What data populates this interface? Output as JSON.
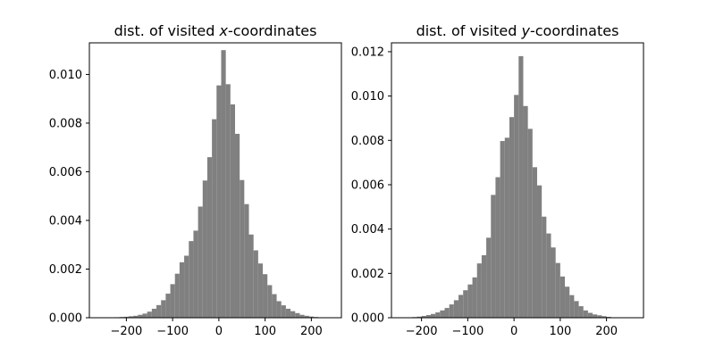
{
  "chart_data": [
    {
      "type": "bar",
      "title_prefix": "dist. of visited ",
      "title_var": "x",
      "title_suffix": "-coordinates",
      "xlim": [
        -280,
        265
      ],
      "ylim": [
        0,
        0.0113
      ],
      "xticks": [
        -200,
        -100,
        0,
        100,
        200
      ],
      "xtick_labels": [
        "−200",
        "−100",
        "0",
        "100",
        "200"
      ],
      "yticks": [
        0,
        0.002,
        0.004,
        0.006,
        0.008,
        0.01
      ],
      "ytick_labels": [
        "0.000",
        "0.002",
        "0.004",
        "0.006",
        "0.008",
        "0.010"
      ],
      "bin_edges": [
        -225,
        -215,
        -205,
        -195,
        -185,
        -175,
        -165,
        -155,
        -145,
        -135,
        -125,
        -115,
        -105,
        -95,
        -85,
        -75,
        -65,
        -55,
        -45,
        -35,
        -25,
        -15,
        -5,
        5,
        15,
        25,
        35,
        45,
        55,
        65,
        75,
        85,
        95,
        105,
        115,
        125,
        135,
        145,
        155,
        165,
        175,
        185,
        195,
        205,
        215
      ],
      "values": [
        2e-05,
        3e-05,
        4e-05,
        6e-05,
        8e-05,
        0.00012,
        0.00017,
        0.00025,
        0.00037,
        0.00052,
        0.00072,
        0.00099,
        0.00138,
        0.00181,
        0.00228,
        0.00255,
        0.00315,
        0.00358,
        0.00457,
        0.00564,
        0.0066,
        0.00816,
        0.00955,
        0.011,
        0.0096,
        0.00877,
        0.00756,
        0.00566,
        0.00467,
        0.00342,
        0.00277,
        0.00223,
        0.00179,
        0.00134,
        0.00097,
        0.00068,
        0.00051,
        0.00037,
        0.00027,
        0.00019,
        0.00012,
        8e-05,
        5e-05,
        3e-05
      ]
    },
    {
      "type": "bar",
      "title_prefix": "dist. of visited ",
      "title_var": "y",
      "title_suffix": "-coordinates",
      "xlim": [
        -265,
        280
      ],
      "ylim": [
        0,
        0.0124
      ],
      "xticks": [
        -200,
        -100,
        0,
        100,
        200
      ],
      "xtick_labels": [
        "−200",
        "−100",
        "0",
        "100",
        "200"
      ],
      "yticks": [
        0,
        0.002,
        0.004,
        0.006,
        0.008,
        0.01,
        0.012
      ],
      "ytick_labels": [
        "0.000",
        "0.002",
        "0.004",
        "0.006",
        "0.008",
        "0.010",
        "0.012"
      ],
      "bin_edges": [
        -230,
        -220,
        -210,
        -200,
        -190,
        -180,
        -170,
        -160,
        -150,
        -140,
        -130,
        -120,
        -110,
        -100,
        -90,
        -80,
        -70,
        -60,
        -50,
        -40,
        -30,
        -20,
        -10,
        0,
        10,
        20,
        30,
        40,
        50,
        60,
        70,
        80,
        90,
        100,
        110,
        120,
        130,
        140,
        150,
        160,
        170,
        180,
        190,
        200,
        210
      ],
      "values": [
        2e-05,
        3e-05,
        5e-05,
        8e-05,
        0.00012,
        0.00017,
        0.00024,
        0.00033,
        0.00044,
        0.0006,
        0.00079,
        0.00103,
        0.00124,
        0.0015,
        0.00182,
        0.00245,
        0.00282,
        0.00361,
        0.00554,
        0.00634,
        0.00797,
        0.00812,
        0.00905,
        0.01005,
        0.0118,
        0.00955,
        0.00852,
        0.00679,
        0.00597,
        0.00456,
        0.0038,
        0.00317,
        0.00247,
        0.00186,
        0.0014,
        0.00102,
        0.00075,
        0.00052,
        0.00033,
        0.00022,
        0.00015,
        0.00011,
        7e-05,
        4e-05
      ]
    }
  ]
}
